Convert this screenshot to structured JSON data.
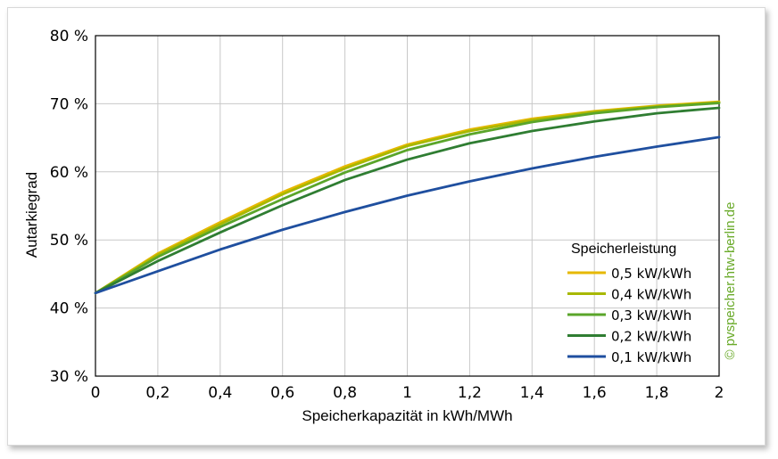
{
  "chart_data": {
    "type": "line",
    "xlabel": "Speicherkapazität in kWh/MWh",
    "ylabel": "Autarkiegrad",
    "xlim": [
      0,
      2
    ],
    "ylim": [
      30,
      80
    ],
    "x_ticks": [
      "0",
      "0,2",
      "0,4",
      "0,6",
      "0,8",
      "1",
      "1,2",
      "1,4",
      "1,6",
      "1,8",
      "2"
    ],
    "y_ticks": [
      "30 %",
      "40 %",
      "50 %",
      "60 %",
      "70 %",
      "80 %"
    ],
    "grid": true,
    "legend_title": "Speicherleistung",
    "legend_position": "bottom-right",
    "x": [
      0,
      0.2,
      0.4,
      0.6,
      0.8,
      1.0,
      1.2,
      1.4,
      1.6,
      1.8,
      2.0
    ],
    "series": [
      {
        "name": "0,5 kW/kWh",
        "color": "#e6b800",
        "values": [
          42.2,
          48.0,
          52.6,
          57.0,
          60.8,
          64.0,
          66.2,
          67.8,
          68.9,
          69.7,
          70.3
        ]
      },
      {
        "name": "0,4 kW/kWh",
        "color": "#a8b800",
        "values": [
          42.2,
          47.8,
          52.3,
          56.7,
          60.5,
          63.8,
          66.0,
          67.6,
          68.8,
          69.6,
          70.2
        ]
      },
      {
        "name": "0,3 kW/kWh",
        "color": "#5aa52a",
        "values": [
          42.2,
          47.5,
          51.9,
          56.0,
          59.9,
          63.2,
          65.5,
          67.3,
          68.6,
          69.5,
          70.1
        ]
      },
      {
        "name": "0,2 kW/kWh",
        "color": "#2f7d32",
        "values": [
          42.2,
          46.9,
          51.1,
          55.1,
          58.8,
          61.8,
          64.2,
          66.0,
          67.4,
          68.6,
          69.4
        ]
      },
      {
        "name": "0,1 kW/kWh",
        "color": "#1f4f9f",
        "values": [
          42.2,
          45.4,
          48.6,
          51.5,
          54.1,
          56.5,
          58.6,
          60.5,
          62.2,
          63.7,
          65.1
        ]
      }
    ],
    "credit": "© pvspeicher.htw-berlin.de",
    "credit_color": "#6aaa2a"
  }
}
